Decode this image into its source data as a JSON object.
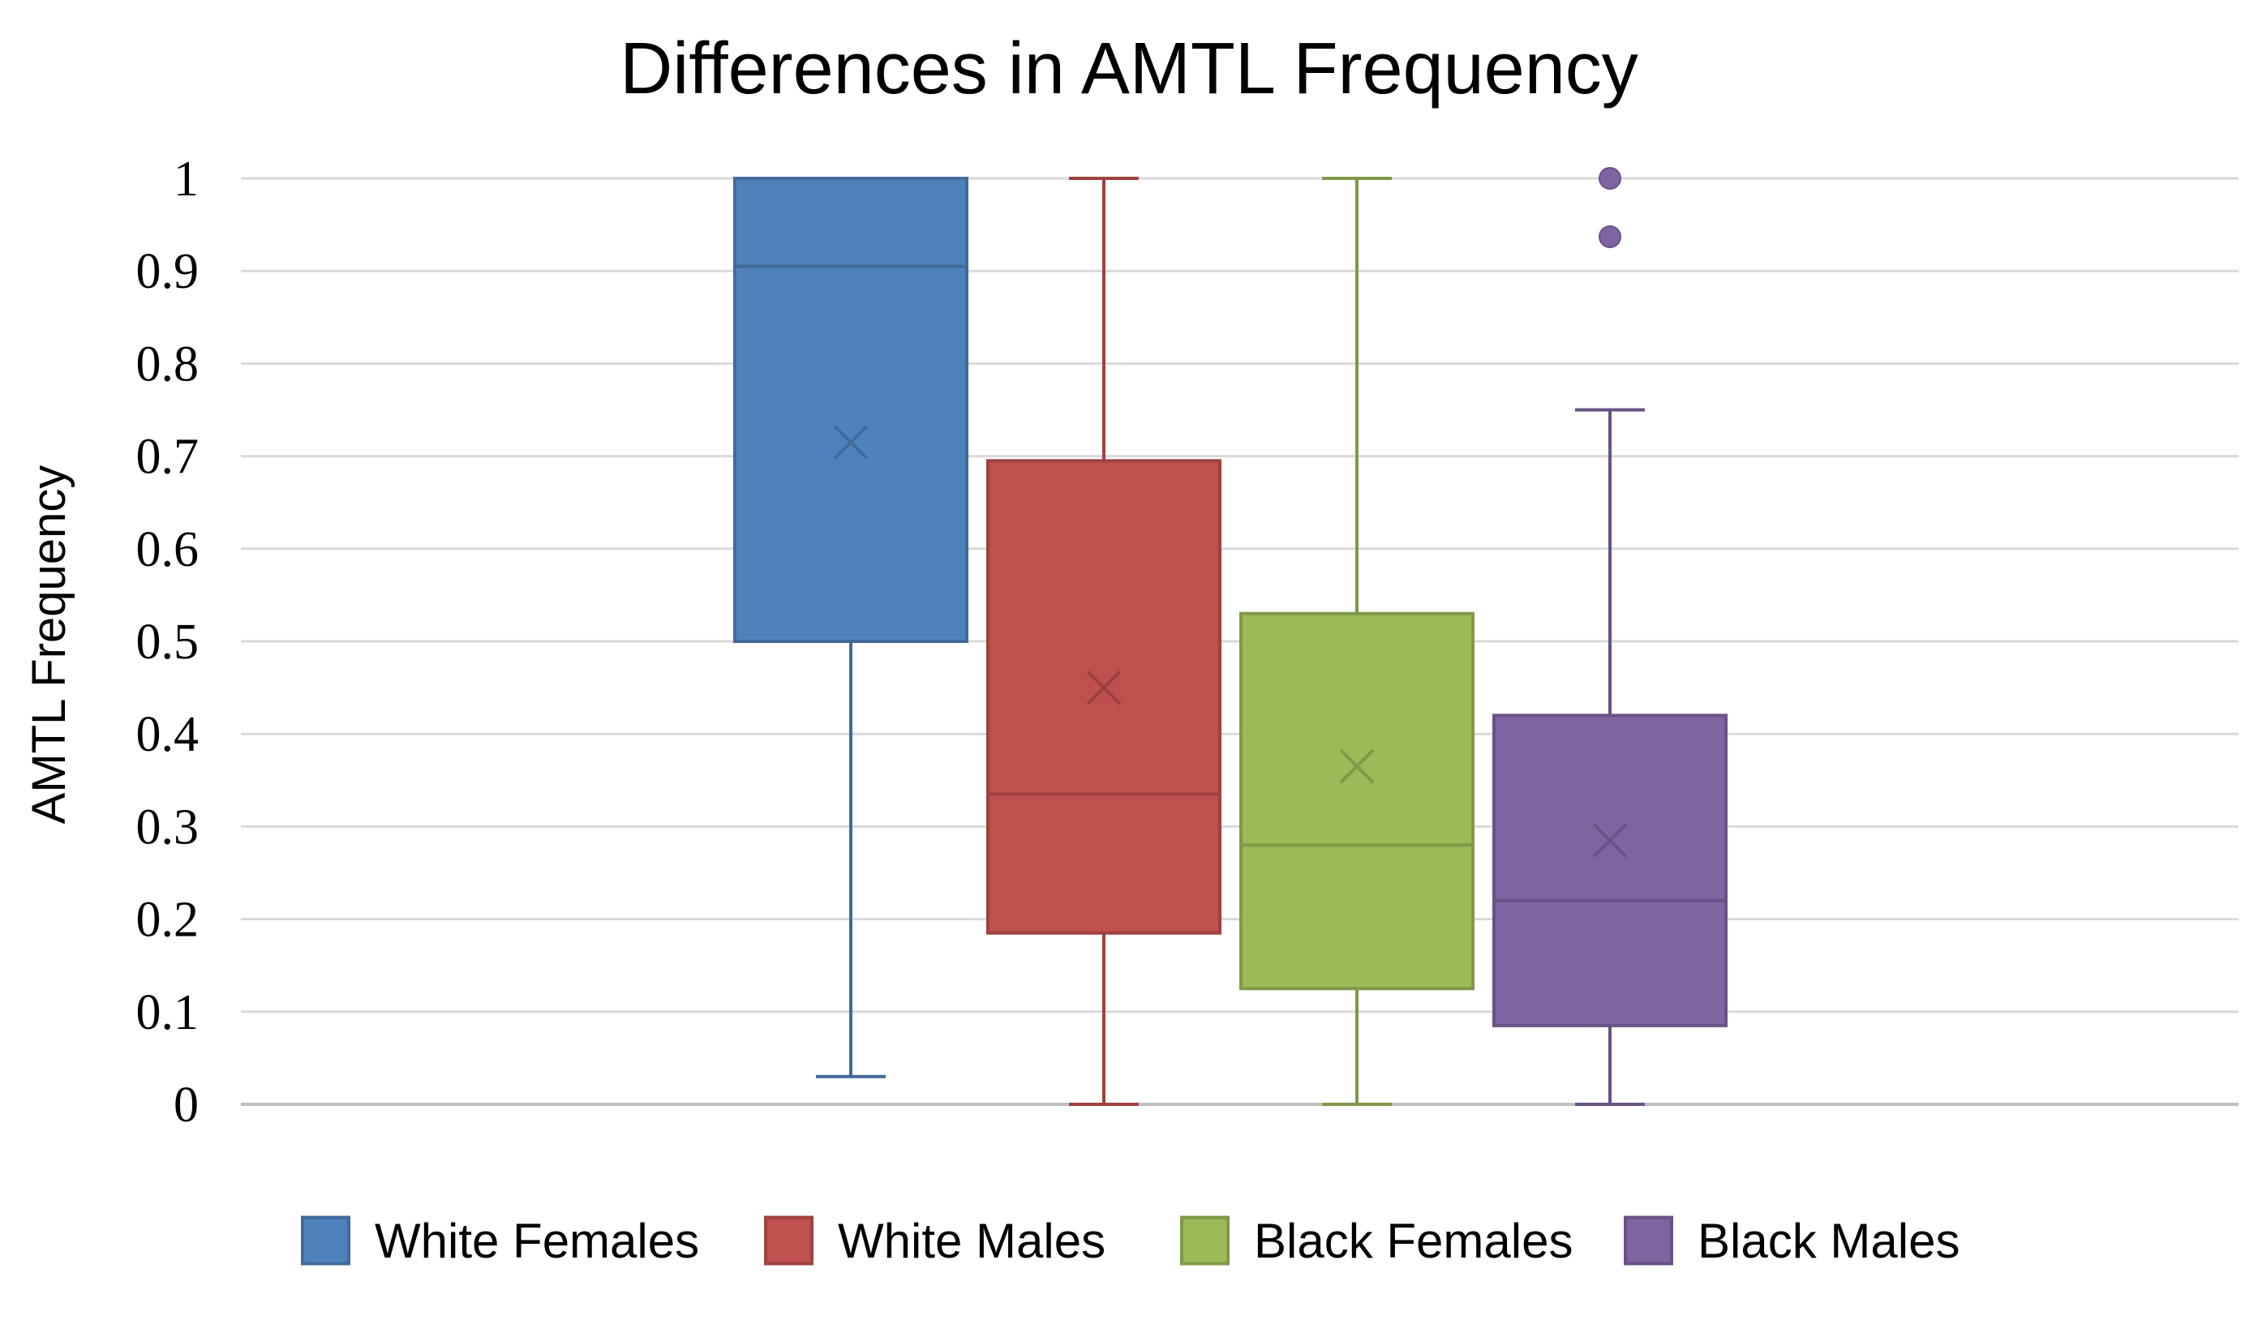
{
  "chart_data": {
    "type": "box",
    "title": "Differences in AMTL Frequency",
    "xlabel": "",
    "ylabel": "AMTL Frequency",
    "ylim": [
      0,
      1
    ],
    "yticks": [
      "0",
      "0.1",
      "0.2",
      "0.3",
      "0.4",
      "0.5",
      "0.6",
      "0.7",
      "0.8",
      "0.9",
      "1"
    ],
    "grid": true,
    "legend_position": "bottom",
    "series": [
      {
        "name": "White Females",
        "color": "#4F81BD",
        "whisker_low": 0.03,
        "q1": 0.5,
        "median": 0.905,
        "q3": 1.0,
        "whisker_high": 1.0,
        "mean": 0.715,
        "outliers": []
      },
      {
        "name": "White Males",
        "color": "#C0504D",
        "whisker_low": 0.0,
        "q1": 0.185,
        "median": 0.335,
        "q3": 0.695,
        "whisker_high": 1.0,
        "mean": 0.45,
        "outliers": []
      },
      {
        "name": "Black Females",
        "color": "#9BBB59",
        "whisker_low": 0.0,
        "q1": 0.125,
        "median": 0.28,
        "q3": 0.53,
        "whisker_high": 1.0,
        "mean": 0.365,
        "outliers": []
      },
      {
        "name": "Black Males",
        "color": "#8064A2",
        "whisker_low": 0.0,
        "q1": 0.085,
        "median": 0.22,
        "q3": 0.42,
        "whisker_high": 0.75,
        "mean": 0.285,
        "outliers": [
          1.0,
          0.937
        ]
      }
    ]
  }
}
